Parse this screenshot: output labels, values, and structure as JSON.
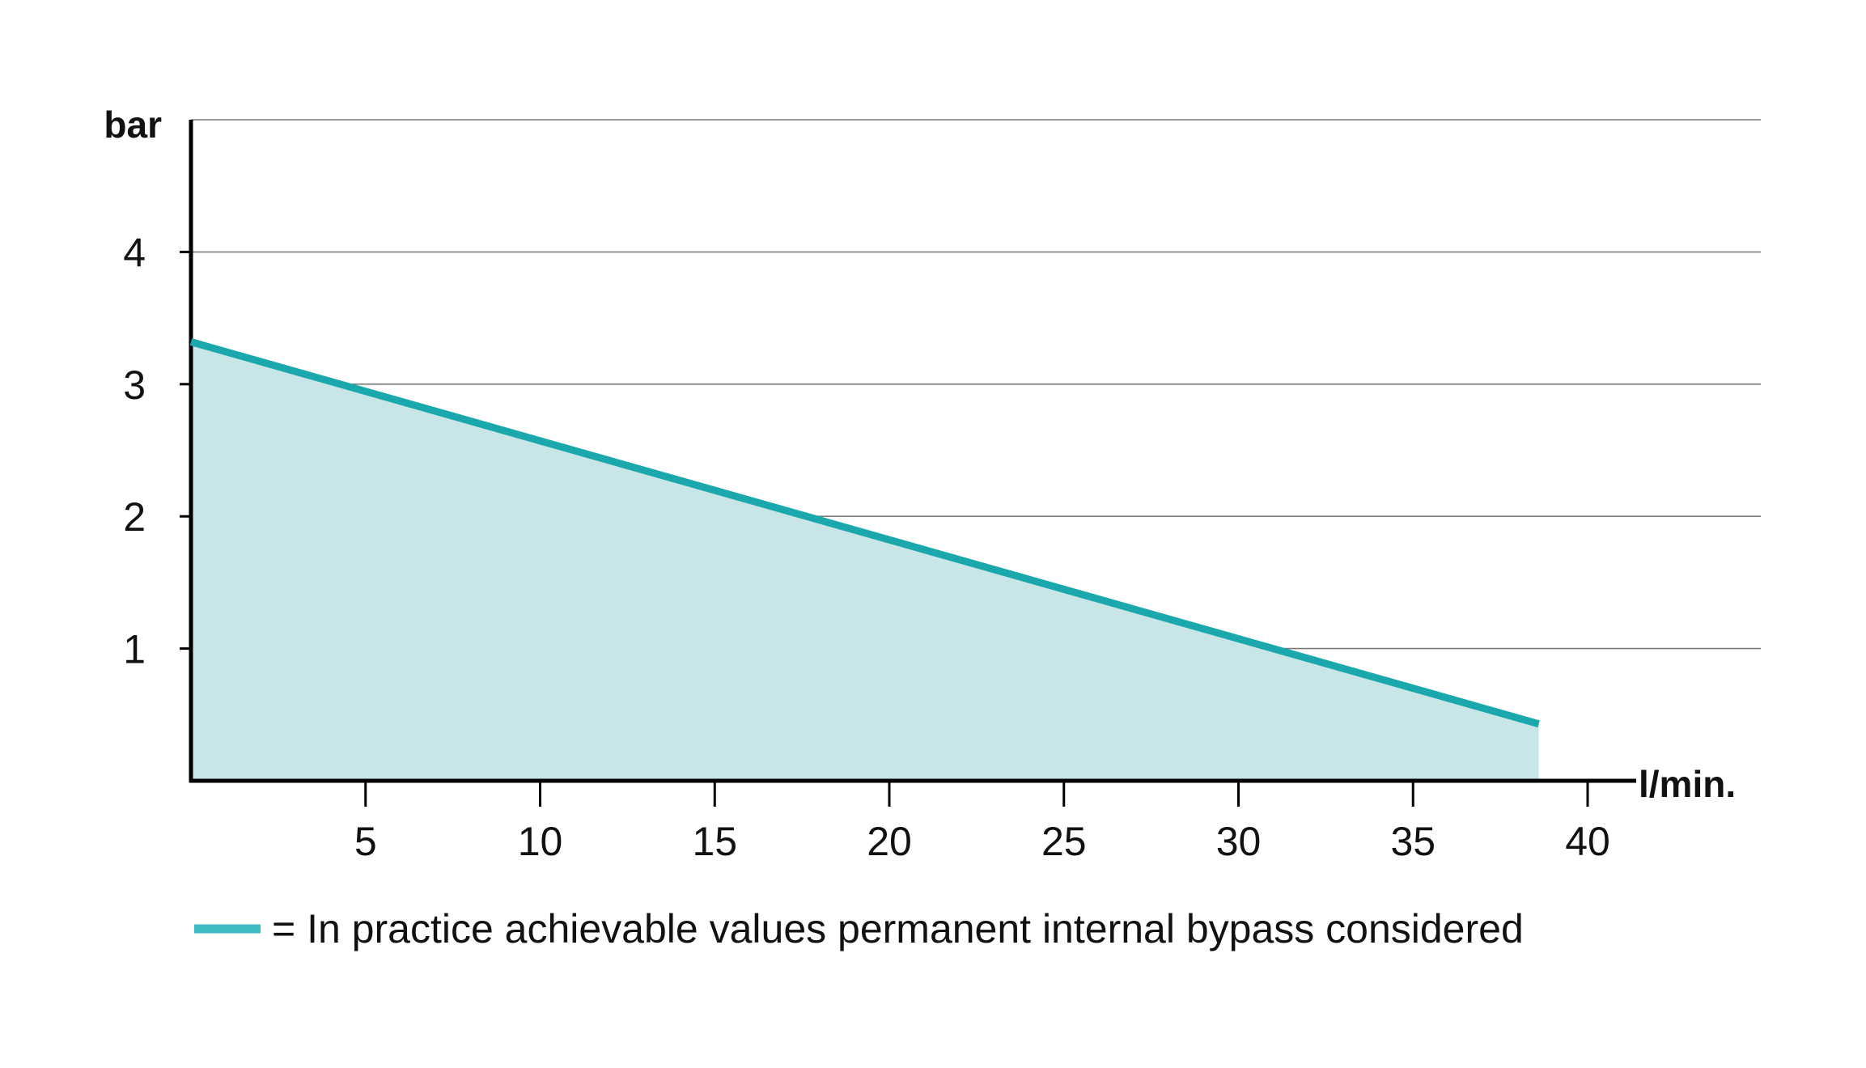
{
  "colors": {
    "series_line": "#1aa8ad",
    "series_fill": "#c8e5e8",
    "legend_swatch": "#3fbcc2",
    "gridline": "#7a7a7a",
    "axis": "#000000",
    "text": "#111111"
  },
  "chart_data": {
    "type": "area",
    "title": "",
    "xlabel": "l/min.",
    "ylabel": "bar",
    "xlim": [
      0,
      40
    ],
    "ylim": [
      0,
      5
    ],
    "x_ticks": [
      5,
      10,
      15,
      20,
      25,
      30,
      35,
      40
    ],
    "y_ticks": [
      1,
      2,
      3,
      4
    ],
    "grid": "horizontal",
    "legend_position": "bottom",
    "series": [
      {
        "name": "= In practice achievable values permanent internal bypass considered",
        "x": [
          0,
          38.6
        ],
        "y": [
          3.32,
          0.43
        ]
      }
    ]
  }
}
